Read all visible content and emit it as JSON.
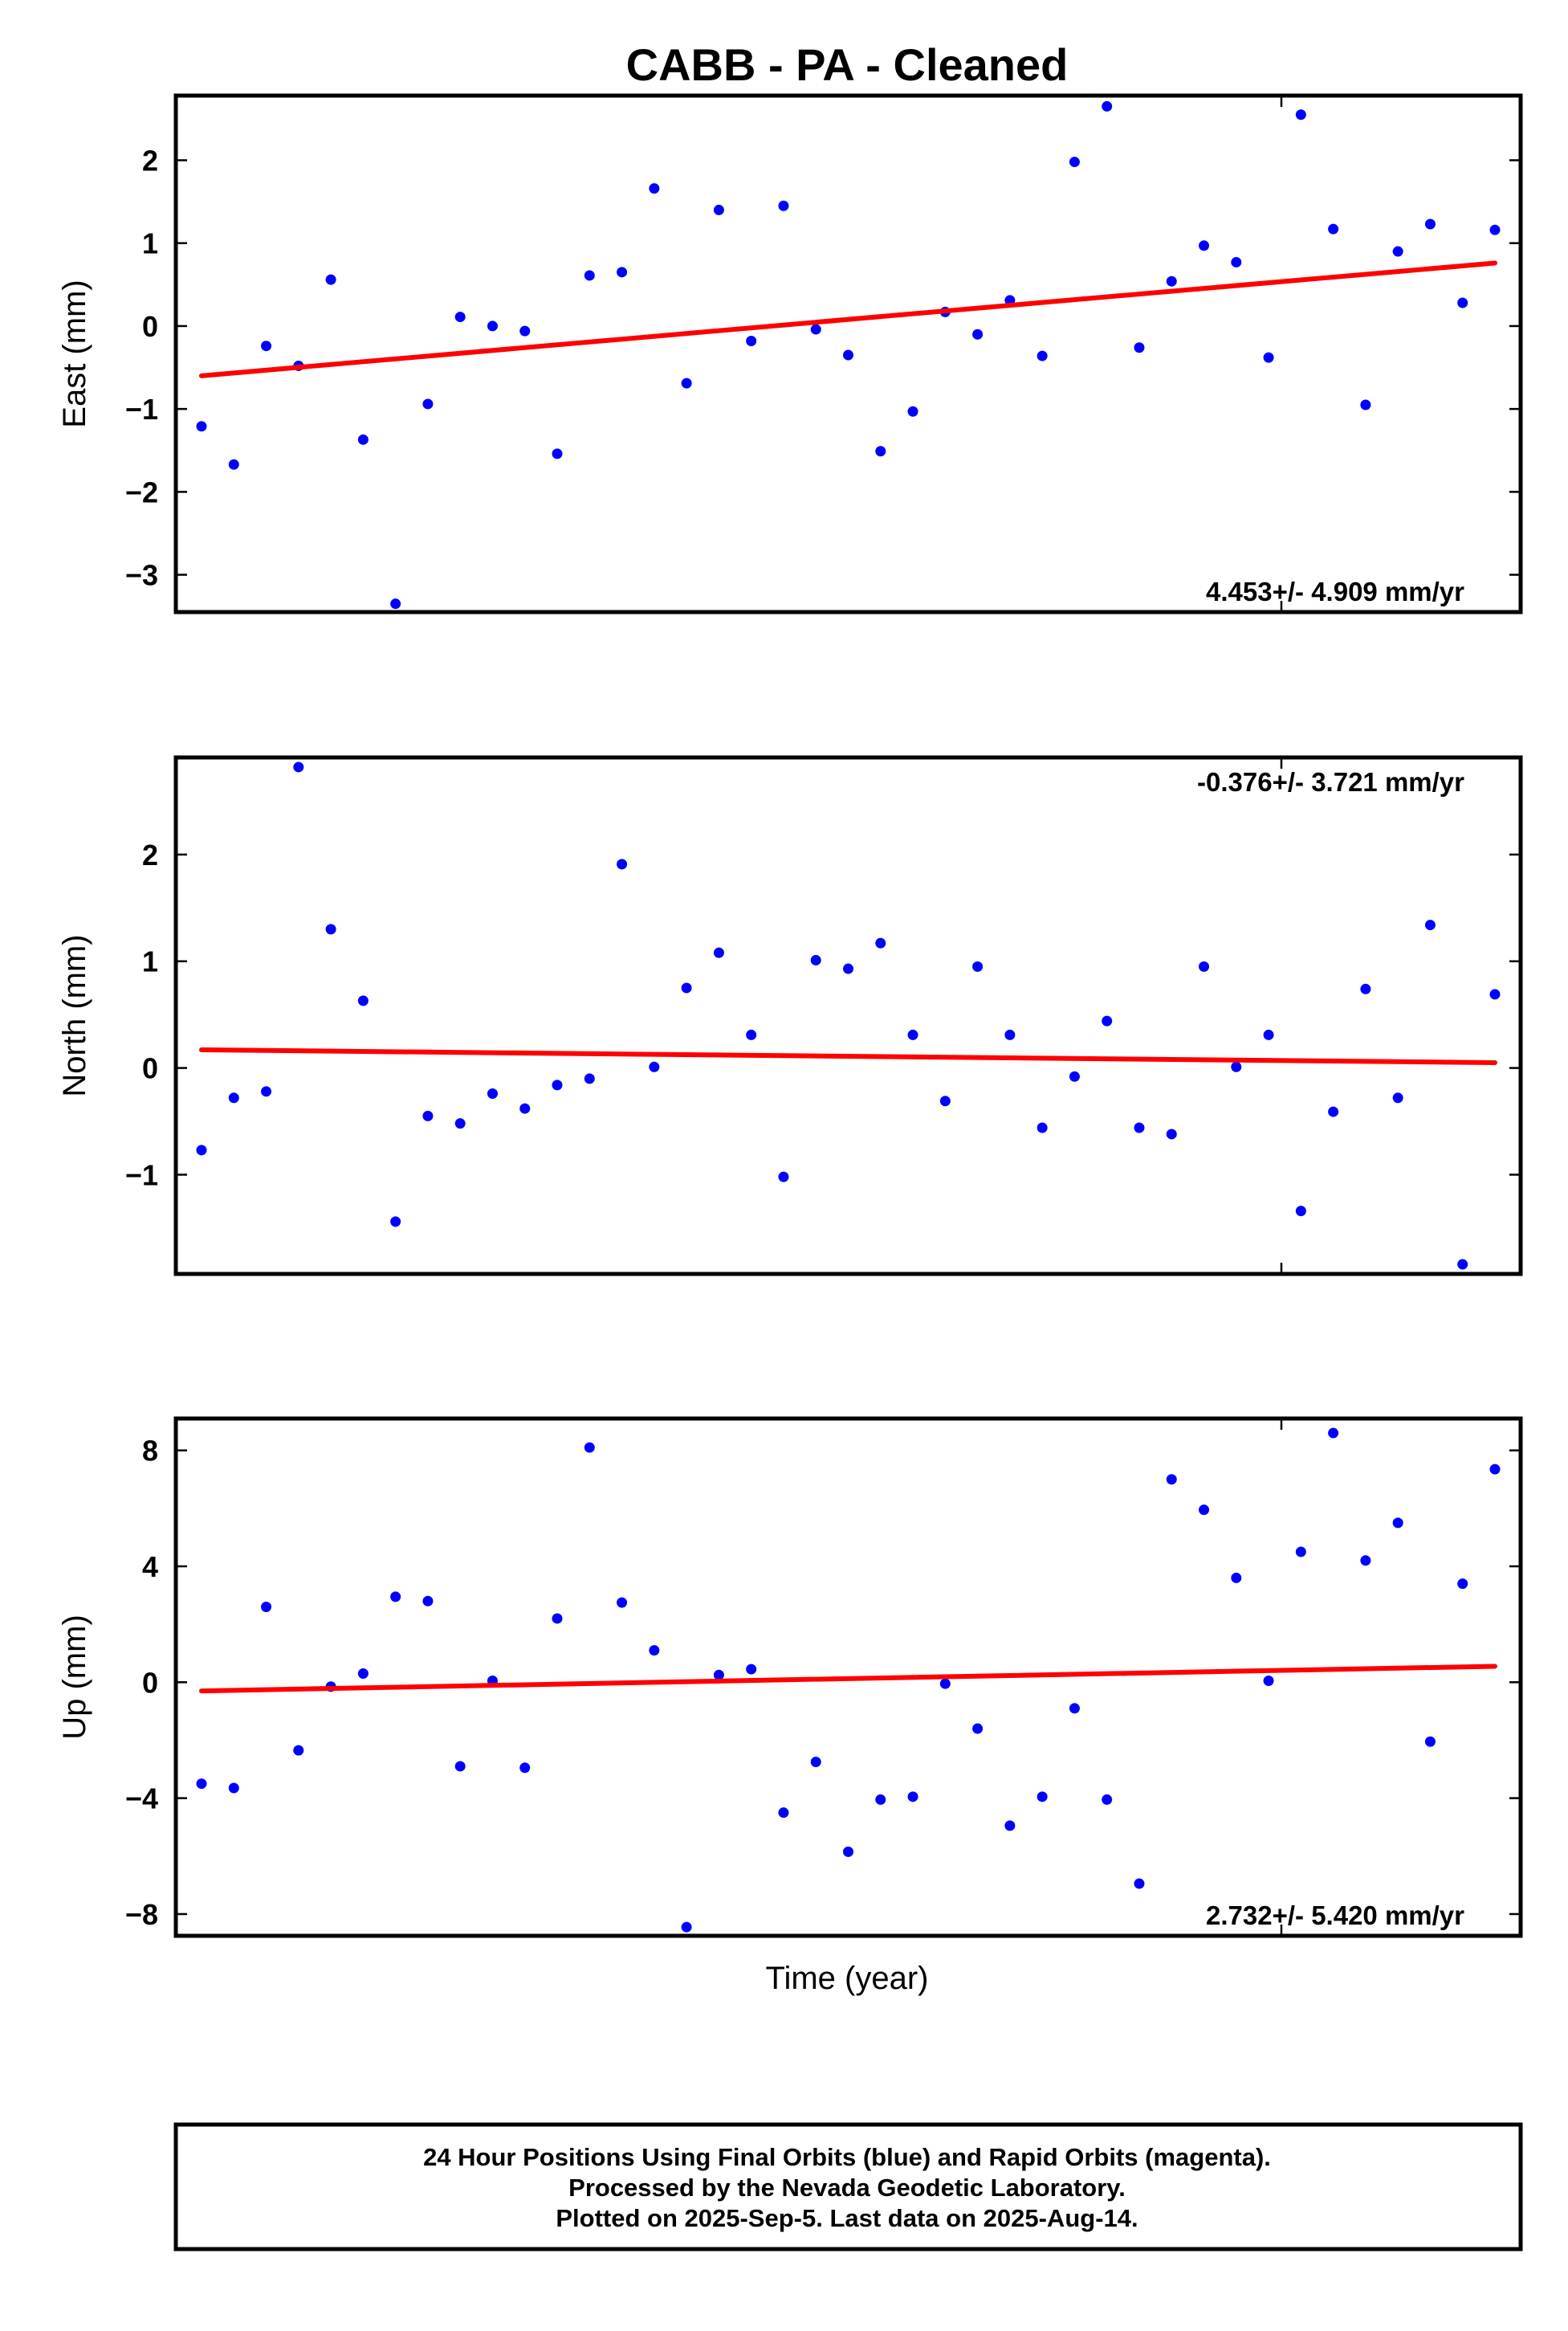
{
  "chart_data": {
    "title": "CABB  - PA - Cleaned",
    "xlabel": "Time (year)",
    "panels": [
      {
        "type": "scatter",
        "ylabel": "East (mm)",
        "ylim": [
          -3.45,
          2.78
        ],
        "yticks": [
          2,
          1,
          0,
          -1,
          -2,
          -3
        ],
        "ytick_labels": [
          "2",
          "1",
          "0",
          "−1",
          "−2",
          "−3"
        ],
        "rate_label": "4.453+/- 4.909 mm/yr",
        "rate_position": "bottom-right",
        "values": [
          -1.21,
          -1.67,
          -0.24,
          -0.48,
          0.56,
          -1.37,
          -3.35,
          -0.94,
          0.11,
          0.0,
          -0.06,
          -1.54,
          0.61,
          0.65,
          1.66,
          -0.69,
          1.4,
          -0.18,
          1.45,
          -0.04,
          -0.35,
          -1.51,
          -1.03,
          0.17,
          -0.1,
          0.31,
          -0.36,
          1.98,
          2.65,
          -0.26,
          0.54,
          0.97,
          0.77,
          -0.38,
          2.55,
          1.17,
          -0.95,
          0.9,
          1.23,
          0.28,
          1.16
        ],
        "trend": [
          -0.6,
          0.76
        ]
      },
      {
        "type": "scatter",
        "ylabel": "North (mm)",
        "ylim": [
          -1.93,
          2.91
        ],
        "yticks": [
          2,
          1,
          0,
          -1
        ],
        "ytick_labels": [
          "2",
          "1",
          "0",
          "−1"
        ],
        "rate_label": "-0.376+/- 3.721 mm/yr",
        "rate_position": "top-right",
        "values": [
          -0.77,
          -0.28,
          -0.22,
          2.82,
          1.3,
          0.63,
          -1.44,
          -0.45,
          -0.52,
          -0.24,
          -0.38,
          -0.16,
          -0.1,
          1.91,
          0.01,
          0.75,
          1.08,
          0.31,
          -1.02,
          1.01,
          0.93,
          1.17,
          0.31,
          -0.31,
          0.95,
          0.31,
          -0.56,
          -0.08,
          0.44,
          -0.56,
          -0.62,
          0.95,
          0.01,
          0.31,
          -1.34,
          -0.41,
          0.74,
          -0.28,
          1.34,
          -1.84,
          0.69
        ],
        "trend": [
          0.17,
          0.05
        ]
      },
      {
        "type": "scatter",
        "ylabel": "Up (mm)",
        "ylim": [
          -8.75,
          9.1
        ],
        "yticks": [
          8,
          4,
          0,
          -4,
          -8
        ],
        "ytick_labels": [
          "8",
          "4",
          "0",
          "−4",
          "−8"
        ],
        "rate_label": "2.732+/- 5.420 mm/yr",
        "rate_position": "bottom-right",
        "values": [
          -3.5,
          -3.65,
          2.6,
          -2.35,
          -0.15,
          0.3,
          2.95,
          2.8,
          -2.9,
          0.05,
          -2.95,
          2.2,
          8.1,
          2.75,
          1.1,
          -8.45,
          0.25,
          0.45,
          -4.5,
          -2.75,
          -5.85,
          -4.05,
          -3.95,
          -0.05,
          -1.6,
          -4.95,
          -3.95,
          -0.9,
          -4.05,
          -6.95,
          7.0,
          5.95,
          3.6,
          0.05,
          4.5,
          8.6,
          4.2,
          5.5,
          -2.05,
          3.4,
          7.35
        ],
        "trend": [
          -0.3,
          0.55
        ]
      }
    ]
  },
  "footer": {
    "line1": "24 Hour Positions Using Final Orbits (blue) and Rapid Orbits (magenta).",
    "line2": "Processed by the Nevada Geodetic Laboratory.",
    "line3": "Plotted on 2025-Sep-5. Last data on 2025-Aug-14."
  },
  "colors": {
    "points": "#0000ff",
    "trend": "#ff0000",
    "frame": "#000000"
  }
}
